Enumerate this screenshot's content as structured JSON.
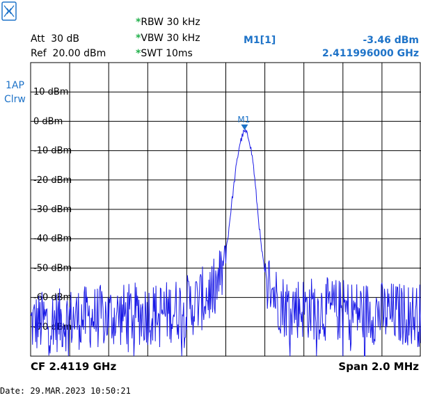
{
  "header": {
    "rbw_label": "RBW",
    "rbw_value": "30 kHz",
    "vbw_label": "VBW",
    "vbw_value": "30 kHz",
    "swt_label": "SWT",
    "swt_value": "10ms",
    "att_label": "Att",
    "att_value": "30 dB",
    "ref_label": "Ref",
    "ref_value": "20.00 dBm",
    "marker_name": "M1[1]",
    "marker_level": "-3.46 dBm",
    "marker_freq": "2.411996000 GHz",
    "star": "*"
  },
  "side": {
    "trace_label": "1AP",
    "trace_mode": "Clrw"
  },
  "footer": {
    "cf": "CF 2.4119 GHz",
    "span": "Span 2.0 MHz",
    "date": "Date: 29.MAR.2023  10:50:21"
  },
  "colors": {
    "trace": "#1a1ae6",
    "accent": "#1e73c8",
    "grid": "#000000",
    "star": "#22b14c"
  },
  "icons": {
    "logo": "rohde-schwarz-logo-icon",
    "marker": "marker-triangle-icon"
  },
  "chart_data": {
    "type": "line",
    "title": "",
    "xlabel": "",
    "ylabel": "",
    "x_range_mhz": [
      2410.9,
      2412.9
    ],
    "ylim": [
      -80,
      20
    ],
    "y_ticks": [
      10,
      0,
      -10,
      -20,
      -30,
      -40,
      -50,
      -60,
      -70
    ],
    "y_tick_labels": [
      "10 dBm",
      "0 dBm",
      "-10 dBm",
      "-20 dBm",
      "-30 dBm",
      "-40 dBm",
      "-50 dBm",
      "-60 dBm",
      "-70 dBm"
    ],
    "grid": true,
    "marker": {
      "label": "M1",
      "x_mhz": 2411.996,
      "y_dbm": -3.46
    },
    "series": [
      {
        "x_mhz": [
          2410.9,
          2411.15,
          2411.4,
          2411.6,
          2411.75,
          2411.85,
          2411.88,
          2411.91,
          2411.93,
          2411.95,
          2411.97,
          2411.99,
          2412.0,
          2412.02,
          2412.04,
          2412.06,
          2412.08,
          2412.1,
          2412.13,
          2412.16,
          2412.2,
          2412.4,
          2412.6,
          2412.9
        ],
        "y_dbm": [
          -69,
          -67,
          -66,
          -65,
          -62,
          -57,
          -52,
          -40,
          -28,
          -17,
          -8,
          -4,
          -3.5,
          -6,
          -14,
          -28,
          -42,
          -52,
          -56,
          -60,
          -63,
          -64,
          -65,
          -66
        ]
      }
    ]
  }
}
